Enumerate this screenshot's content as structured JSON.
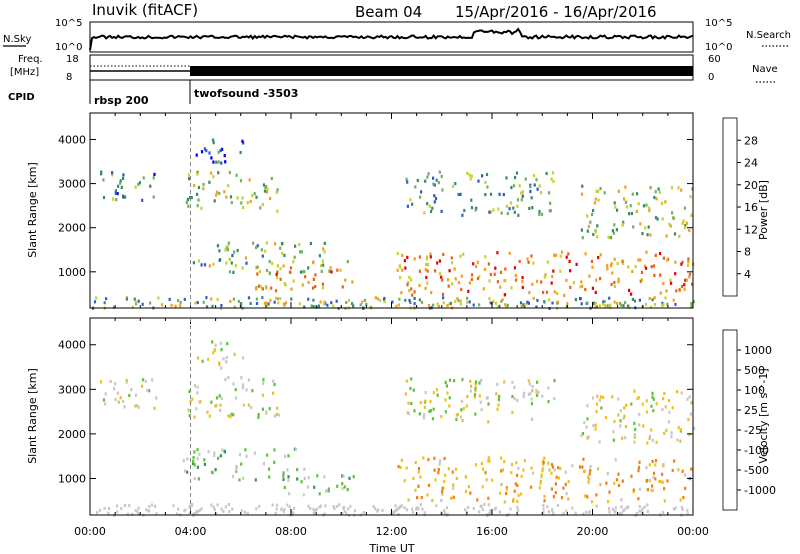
{
  "header": {
    "title": "Inuvik (fitACF)",
    "beam": "Beam 04",
    "date_range": "15/Apr/2016 - 16/Apr/2016"
  },
  "top_panels": {
    "nsky_label": "N.Sky",
    "nsearch_label": "N.Search",
    "nsky_ticks": [
      "10^5",
      "10^0"
    ],
    "nsearch_ticks": [
      "10^5",
      "10^0"
    ],
    "freq_label_1": "Freq.",
    "freq_label_2": "[MHz]",
    "freq_ticks": [
      "18",
      "8"
    ],
    "nave_label": "Nave",
    "nave_ticks": [
      "60",
      "0"
    ],
    "cpid_label": "CPID",
    "cpid_programs": [
      {
        "name": "rbsp 200",
        "start_hour": 0
      },
      {
        "name": "twofsound -3503",
        "start_hour": 4
      }
    ]
  },
  "axes": {
    "x_ticks": [
      "00:00",
      "04:00",
      "08:00",
      "12:00",
      "16:00",
      "20:00",
      "00:00"
    ],
    "x_label": "Time UT",
    "y_label": "Slant Range [km]",
    "y_ticks": [
      "1000",
      "2000",
      "3000",
      "4000"
    ]
  },
  "power_colorbar": {
    "label": "Power [dB]",
    "ticks": [
      "4",
      "8",
      "12",
      "16",
      "20",
      "24",
      "28"
    ],
    "colors": [
      "#0000f0",
      "#2a5cc8",
      "#3a8a6a",
      "#70b060",
      "#c8d030",
      "#f0a020",
      "#f06010",
      "#e80000"
    ]
  },
  "velocity_colorbar": {
    "label": "Velocity [m s^-1]",
    "ticks": [
      "1000",
      "500",
      "100",
      "25",
      "-25",
      "-100",
      "-500",
      "-1000"
    ],
    "colors": [
      "#1040c0",
      "#2a70b0",
      "#3a9060",
      "#60c040",
      "#c8c8c8",
      "#f0c020",
      "#f08010",
      "#f04010",
      "#e80000"
    ]
  },
  "chart_data": [
    {
      "type": "heatmap",
      "title": "Power",
      "xlabel": "Time UT",
      "ylabel": "Slant Range [km]",
      "xlim": [
        0,
        24
      ],
      "ylim": [
        180,
        4600
      ],
      "colorbar_label": "Power [dB]",
      "colorbar_range": [
        0,
        32
      ],
      "regions": [
        {
          "t0": 0.3,
          "t1": 2.8,
          "r0": 2600,
          "r1": 3300,
          "value": 10
        },
        {
          "t0": 3.8,
          "t1": 7.5,
          "r0": 2400,
          "r1": 3300,
          "value": 16
        },
        {
          "t0": 4.2,
          "t1": 6.2,
          "r0": 3500,
          "r1": 4100,
          "value": 6
        },
        {
          "t0": 4.0,
          "t1": 9.5,
          "r0": 1000,
          "r1": 1700,
          "value": 14
        },
        {
          "t0": 6.5,
          "t1": 10.5,
          "r0": 600,
          "r1": 1300,
          "value": 22
        },
        {
          "t0": 12.5,
          "t1": 18.5,
          "r0": 2300,
          "r1": 3300,
          "value": 12
        },
        {
          "t0": 19.5,
          "t1": 24,
          "r0": 1800,
          "r1": 3000,
          "value": 16
        },
        {
          "t0": 12.2,
          "t1": 24,
          "r0": 500,
          "r1": 1500,
          "value": 24
        }
      ]
    },
    {
      "type": "heatmap",
      "title": "Velocity",
      "xlabel": "Time UT",
      "ylabel": "Slant Range [km]",
      "xlim": [
        0,
        24
      ],
      "ylim": [
        180,
        4600
      ],
      "colorbar_label": "Velocity [m s^-1]",
      "colorbar_range": [
        -1000,
        1000
      ],
      "regions": [
        {
          "t0": 0.3,
          "t1": 2.8,
          "r0": 2600,
          "r1": 3300,
          "value": 0
        },
        {
          "t0": 3.8,
          "t1": 7.5,
          "r0": 2400,
          "r1": 3300,
          "value": 0
        },
        {
          "t0": 4.2,
          "t1": 6.2,
          "r0": 3500,
          "r1": 4100,
          "value": 0
        },
        {
          "t0": 3.5,
          "t1": 8.5,
          "r0": 1000,
          "r1": 1700,
          "value": 200
        },
        {
          "t0": 7.5,
          "t1": 10.5,
          "r0": 600,
          "r1": 1100,
          "value": 150
        },
        {
          "t0": 12.5,
          "t1": 18.5,
          "r0": 2300,
          "r1": 3300,
          "value": 0
        },
        {
          "t0": 19.5,
          "t1": 24,
          "r0": 1800,
          "r1": 3000,
          "value": -50
        },
        {
          "t0": 12.2,
          "t1": 24,
          "r0": 500,
          "r1": 1500,
          "value": -300
        }
      ]
    }
  ]
}
